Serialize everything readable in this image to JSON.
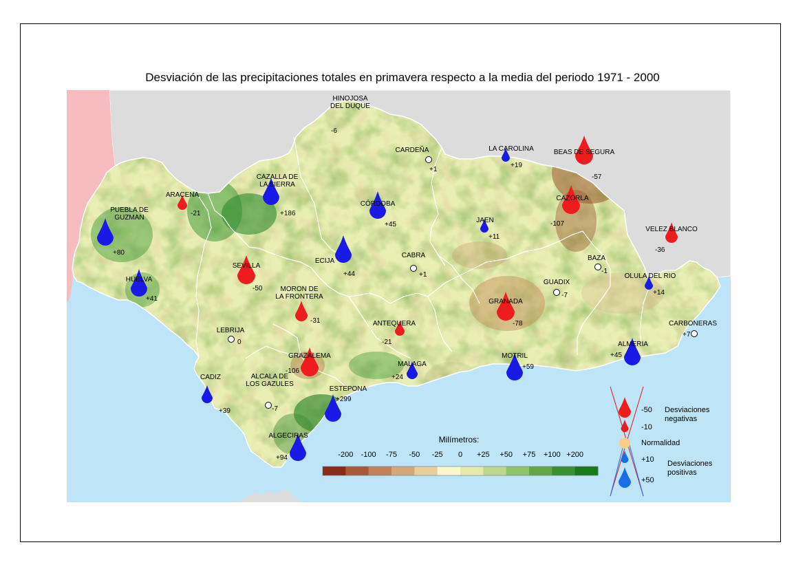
{
  "title": "Desviación de las precipitaciones totales en primavera respecto a la media del periodo 1971 - 2000",
  "colors": {
    "sea": "#bde4f7",
    "land_outside": "#dcdcdc",
    "portugal": "#f7bcc0",
    "positive_drop": "#1a1ae6",
    "negative_drop": "#ee1c1c",
    "normal": "#ffcc88",
    "legend_drop_positive": "#1a6fe6"
  },
  "stations": [
    {
      "name": "HINOJOSA\nDEL DUQUE",
      "value": "-6",
      "type": "none"
    },
    {
      "name": "CARDEÑA",
      "value": "+1",
      "type": "normal"
    },
    {
      "name": "LA CAROLINA",
      "value": "+19",
      "type": "pos-s"
    },
    {
      "name": "BEAS DE SEGURA",
      "value": "-57",
      "type": "neg-l"
    },
    {
      "name": "CAZORLA",
      "value": "-107",
      "type": "neg-l"
    },
    {
      "name": "ARACENA",
      "value": "-21",
      "type": "neg-s"
    },
    {
      "name": "CAZALLA DE\nLA SIERRA",
      "value": "+186",
      "type": "pos-l"
    },
    {
      "name": "CÓRDOBA",
      "value": "+45",
      "type": "pos-l"
    },
    {
      "name": "JAEN",
      "value": "+11",
      "type": "pos-s"
    },
    {
      "name": "VELEZ BLANCO",
      "value": "-36",
      "type": "neg-m"
    },
    {
      "name": "PUEBLA DE\nGUZMAN",
      "value": "+80",
      "type": "pos-l"
    },
    {
      "name": "ECIJA",
      "value": "+44",
      "type": "pos-l"
    },
    {
      "name": "CABRA",
      "value": "+1",
      "type": "normal"
    },
    {
      "name": "BAZA",
      "value": "-1",
      "type": "normal"
    },
    {
      "name": "SEVILLA",
      "value": "-50",
      "type": "neg-l"
    },
    {
      "name": "GUADIX",
      "value": "-7",
      "type": "normal"
    },
    {
      "name": "OLULA DEL RIO",
      "value": "+14",
      "type": "pos-s"
    },
    {
      "name": "HUELVA",
      "value": "+41",
      "type": "pos-l"
    },
    {
      "name": "MORON DE\nLA FRONTERA",
      "value": "-31",
      "type": "neg-m"
    },
    {
      "name": "GRANADA",
      "value": "-78",
      "type": "neg-l"
    },
    {
      "name": "CARBONERAS",
      "value": "+7",
      "type": "normal"
    },
    {
      "name": "LEBRIJA",
      "value": "0",
      "type": "normal"
    },
    {
      "name": "ANTEQUERA",
      "value": "-21",
      "type": "neg-s"
    },
    {
      "name": "ALMERIA",
      "value": "+45",
      "type": "pos-l"
    },
    {
      "name": "GRAZALEMA",
      "value": "-106",
      "type": "neg-l"
    },
    {
      "name": "MOTRIL",
      "value": "+59",
      "type": "pos-l"
    },
    {
      "name": "MALAGA",
      "value": "+24",
      "type": "pos-m"
    },
    {
      "name": "CADIZ",
      "value": "+39",
      "type": "pos-m"
    },
    {
      "name": "ALCALA DE\nLOS GAZULES",
      "value": "-7",
      "type": "normal"
    },
    {
      "name": "ESTEPONA",
      "value": "+299",
      "type": "pos-l"
    },
    {
      "name": "ALGECIRAS",
      "value": "+94",
      "type": "pos-l"
    }
  ],
  "colorbar": {
    "title": "Milímetros:",
    "labels": [
      "-200",
      "-100",
      "-75",
      "-50",
      "-25",
      "0",
      "+25",
      "+50",
      "+75",
      "+100",
      "+200"
    ],
    "colors": [
      "#8b2a1a",
      "#a85a38",
      "#c08258",
      "#d2a878",
      "#e6cf98",
      "#fbf8cf",
      "#e4eaaa",
      "#bcd88a",
      "#90c46a",
      "#62a846",
      "#3a8f2e",
      "#18781a"
    ]
  },
  "legend": {
    "items": [
      {
        "label": "-50",
        "type": "neg-l"
      },
      {
        "label": "-10",
        "type": "neg-s"
      },
      {
        "label": "Normalidad",
        "type": "normal"
      },
      {
        "label": "+10",
        "type": "pos-s"
      },
      {
        "label": "+50",
        "type": "pos-l"
      }
    ],
    "neg_text": [
      "Desviaciones",
      "negativas"
    ],
    "pos_text": [
      "Desviaciones",
      "positivas"
    ]
  }
}
